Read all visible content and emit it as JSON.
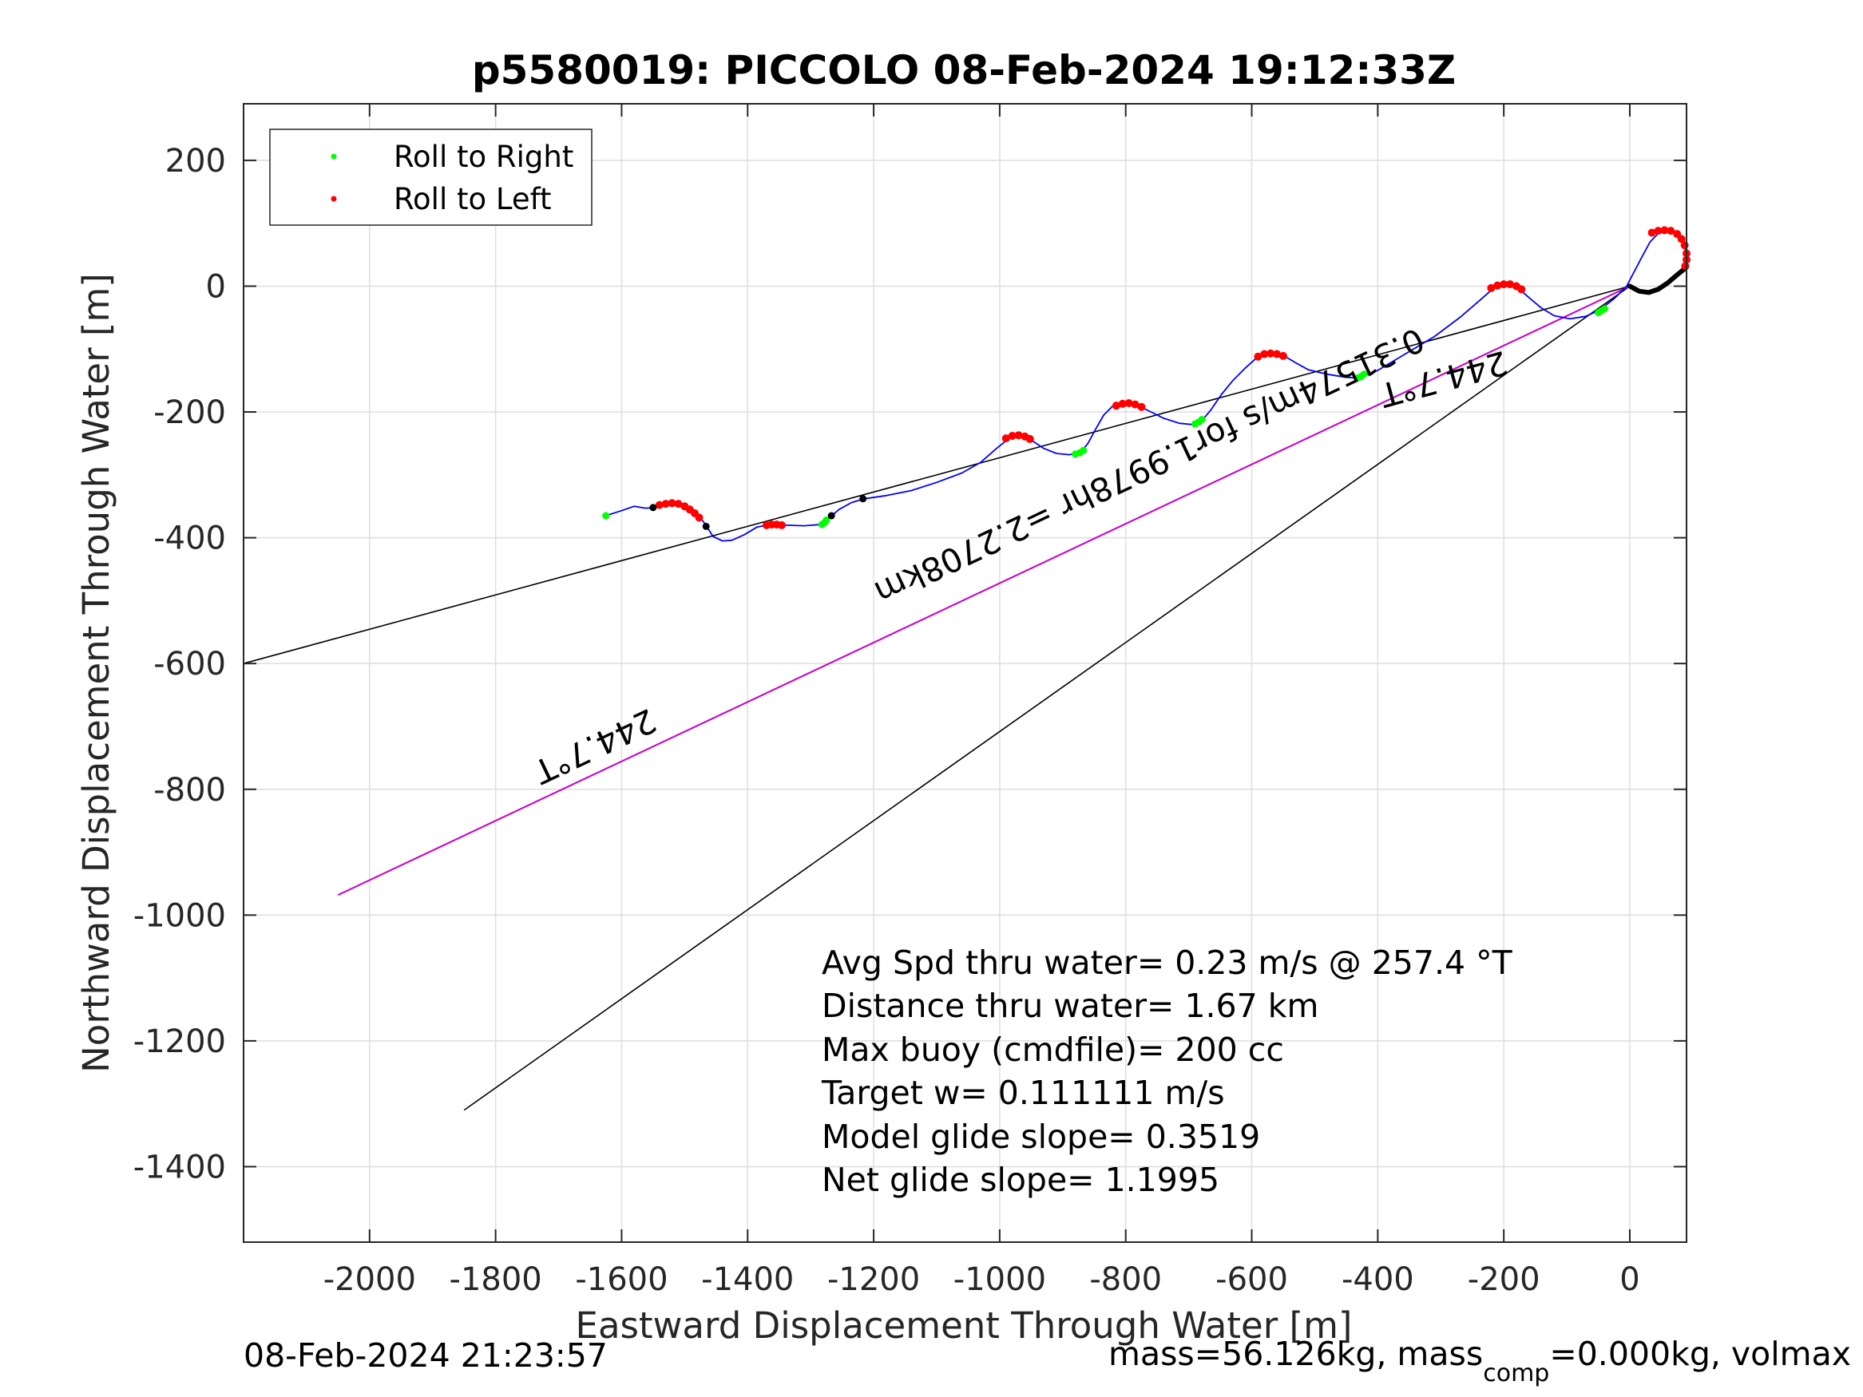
{
  "chart_data": {
    "type": "line",
    "title": "p5580019: PICCOLO 08-Feb-2024 19:12:33Z",
    "xlabel": "Eastward Displacement Through Water [m]",
    "ylabel": "Northward Displacement Through Water [m]",
    "xlim": [
      -2200,
      90
    ],
    "ylim": [
      -1520,
      290
    ],
    "xticks": [
      -2000,
      -1800,
      -1600,
      -1400,
      -1200,
      -1000,
      -800,
      -600,
      -400,
      -200,
      0
    ],
    "yticks": [
      200,
      0,
      -200,
      -400,
      -600,
      -800,
      -1000,
      -1200,
      -1400
    ],
    "grid": true,
    "legend_position": "top-left",
    "legend": [
      {
        "label": "Roll to Right",
        "color": "#00ff00"
      },
      {
        "label": "Roll to Left",
        "color": "#ff0000"
      }
    ],
    "colors": {
      "track": "#0000ff",
      "commanded": "#cc00cc",
      "reference": "#000000",
      "axis": "#262626",
      "grid": "#dedede"
    },
    "track": [
      [
        -1625,
        -365
      ],
      [
        -1600,
        -357
      ],
      [
        -1580,
        -350
      ],
      [
        -1562,
        -353
      ],
      [
        -1548,
        -352
      ],
      [
        -1530,
        -346
      ],
      [
        -1510,
        -346
      ],
      [
        -1490,
        -355
      ],
      [
        -1475,
        -368
      ],
      [
        -1465,
        -382
      ],
      [
        -1455,
        -398
      ],
      [
        -1440,
        -405
      ],
      [
        -1425,
        -404
      ],
      [
        -1405,
        -395
      ],
      [
        -1385,
        -383
      ],
      [
        -1365,
        -379
      ],
      [
        -1340,
        -380
      ],
      [
        -1310,
        -381
      ],
      [
        -1285,
        -379
      ],
      [
        -1270,
        -368
      ],
      [
        -1255,
        -355
      ],
      [
        -1235,
        -344
      ],
      [
        -1215,
        -338
      ],
      [
        -1180,
        -333
      ],
      [
        -1140,
        -325
      ],
      [
        -1100,
        -312
      ],
      [
        -1060,
        -297
      ],
      [
        -1030,
        -280
      ],
      [
        -1005,
        -258
      ],
      [
        -985,
        -242
      ],
      [
        -970,
        -238
      ],
      [
        -955,
        -240
      ],
      [
        -945,
        -248
      ],
      [
        -930,
        -258
      ],
      [
        -910,
        -266
      ],
      [
        -890,
        -268
      ],
      [
        -872,
        -265
      ],
      [
        -860,
        -250
      ],
      [
        -848,
        -228
      ],
      [
        -835,
        -205
      ],
      [
        -820,
        -190
      ],
      [
        -800,
        -186
      ],
      [
        -780,
        -190
      ],
      [
        -760,
        -200
      ],
      [
        -740,
        -210
      ],
      [
        -715,
        -218
      ],
      [
        -695,
        -220
      ],
      [
        -680,
        -215
      ],
      [
        -665,
        -197
      ],
      [
        -648,
        -172
      ],
      [
        -630,
        -150
      ],
      [
        -610,
        -130
      ],
      [
        -590,
        -112
      ],
      [
        -570,
        -107
      ],
      [
        -550,
        -110
      ],
      [
        -530,
        -122
      ],
      [
        -510,
        -133
      ],
      [
        -480,
        -140
      ],
      [
        -450,
        -145
      ],
      [
        -430,
        -146
      ],
      [
        -400,
        -134
      ],
      [
        -360,
        -110
      ],
      [
        -310,
        -80
      ],
      [
        -270,
        -50
      ],
      [
        -235,
        -20
      ],
      [
        -215,
        -2
      ],
      [
        -195,
        3
      ],
      [
        -175,
        -5
      ],
      [
        -158,
        -20
      ],
      [
        -140,
        -35
      ],
      [
        -120,
        -47
      ],
      [
        -95,
        -52
      ],
      [
        -70,
        -48
      ],
      [
        -48,
        -38
      ],
      [
        -25,
        -20
      ],
      [
        -5,
        0
      ],
      [
        8,
        25
      ],
      [
        20,
        48
      ],
      [
        32,
        70
      ],
      [
        48,
        87
      ],
      [
        68,
        88
      ],
      [
        83,
        75
      ],
      [
        90,
        52
      ],
      [
        85,
        30
      ],
      [
        70,
        15
      ],
      [
        55,
        0
      ],
      [
        40,
        -8
      ],
      [
        25,
        -10
      ],
      [
        10,
        -5
      ],
      [
        0,
        0
      ]
    ],
    "roll_right_points": [
      [
        -1625,
        -365
      ],
      [
        -1282,
        -379
      ],
      [
        -1278,
        -376
      ],
      [
        -1275,
        -372
      ],
      [
        -880,
        -267
      ],
      [
        -873,
        -265
      ],
      [
        -867,
        -261
      ],
      [
        -690,
        -219
      ],
      [
        -684,
        -216
      ],
      [
        -679,
        -212
      ],
      [
        -432,
        -146
      ],
      [
        -427,
        -144
      ],
      [
        -422,
        -140
      ],
      [
        -50,
        -42
      ],
      [
        -45,
        -39
      ],
      [
        -40,
        -36
      ]
    ],
    "roll_left_points": [
      [
        -1540,
        -348
      ],
      [
        -1530,
        -346
      ],
      [
        -1520,
        -345
      ],
      [
        -1510,
        -346
      ],
      [
        -1500,
        -350
      ],
      [
        -1492,
        -355
      ],
      [
        -1484,
        -361
      ],
      [
        -1477,
        -368
      ],
      [
        -1370,
        -380
      ],
      [
        -1362,
        -379
      ],
      [
        -1354,
        -379
      ],
      [
        -1346,
        -380
      ],
      [
        -990,
        -242
      ],
      [
        -980,
        -238
      ],
      [
        -970,
        -237
      ],
      [
        -960,
        -239
      ],
      [
        -952,
        -243
      ],
      [
        -815,
        -190
      ],
      [
        -805,
        -187
      ],
      [
        -795,
        -186
      ],
      [
        -785,
        -188
      ],
      [
        -775,
        -192
      ],
      [
        -590,
        -112
      ],
      [
        -580,
        -108
      ],
      [
        -570,
        -107
      ],
      [
        -560,
        -108
      ],
      [
        -550,
        -111
      ],
      [
        -220,
        -3
      ],
      [
        -210,
        1
      ],
      [
        -200,
        3
      ],
      [
        -190,
        3
      ],
      [
        -180,
        0
      ],
      [
        -172,
        -5
      ],
      [
        35,
        85
      ],
      [
        45,
        88
      ],
      [
        55,
        89
      ],
      [
        65,
        88
      ],
      [
        75,
        83
      ],
      [
        82,
        75
      ],
      [
        87,
        65
      ],
      [
        90,
        52
      ],
      [
        90,
        42
      ],
      [
        88,
        32
      ]
    ],
    "surface_points": [
      [
        -1550,
        -352
      ],
      [
        -1466,
        -382
      ],
      [
        -1267,
        -365
      ],
      [
        -1217,
        -338
      ]
    ],
    "surface_path": [
      [
        0,
        0
      ],
      [
        15,
        -8
      ],
      [
        30,
        -10
      ],
      [
        45,
        -5
      ],
      [
        60,
        5
      ],
      [
        75,
        18
      ],
      [
        90,
        30
      ]
    ],
    "commanded_line": [
      [
        0,
        0
      ],
      [
        -2050,
        -968
      ]
    ],
    "reference_lines": [
      [
        [
          0,
          0
        ],
        [
          -2200,
          -600
        ]
      ],
      [
        [
          0,
          0
        ],
        [
          -2050,
          -968
        ]
      ],
      [
        [
          0,
          0
        ],
        [
          -1850,
          -1310
        ]
      ]
    ],
    "annotations": [
      {
        "text": "244.7°T",
        "x": -1650,
        "y": -715,
        "rotation": 154.7
      },
      {
        "text": "0.31574m/s for1.9978hr =2.2708km",
        "x": -770,
        "y": -270,
        "rotation": 154.7
      },
      {
        "text": "244.7°T",
        "x": -300,
        "y": -130,
        "rotation": 164.7
      }
    ],
    "stats": [
      "Avg Spd thru water=  0.23 m/s @ 257.4 °T",
      "Distance thru water=  1.67 km",
      "Max buoy (cmdfile)= 200 cc",
      "Target w= 0.111111 m/s",
      "Model glide slope= 0.3519",
      "Net glide slope= 1.1995"
    ],
    "footer_left": "08-Feb-2024 21:23:57",
    "footer_right": {
      "prefix": "mass=56.126kg, mass",
      "sub": "comp",
      "suffix": "=0.000kg, volmax"
    }
  }
}
